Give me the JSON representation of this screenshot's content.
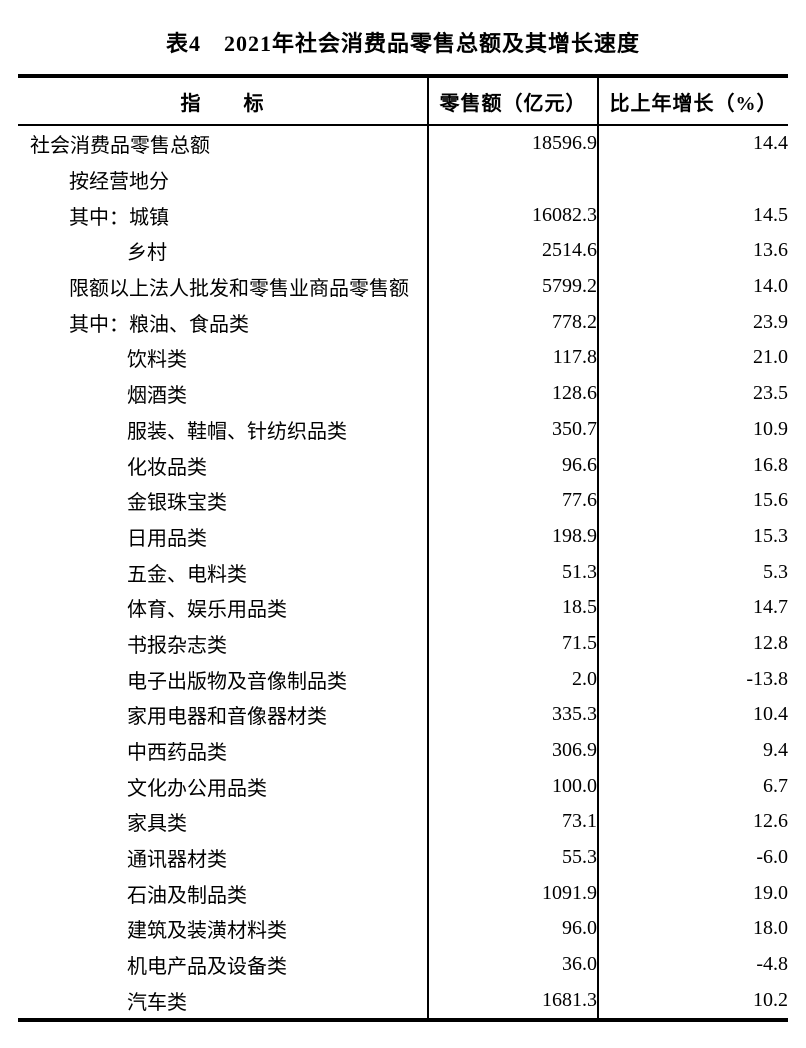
{
  "title": "表4　2021年社会消费品零售总额及其增长速度",
  "table": {
    "columns": [
      "指　　标",
      "零售额（亿元）",
      "比上年增长（%）"
    ],
    "rows": [
      {
        "indicator": "社会消费品零售总额",
        "indent": 0,
        "retail": "18596.9",
        "growth": "14.4"
      },
      {
        "indicator": "按经营地分",
        "indent": 1,
        "retail": "",
        "growth": ""
      },
      {
        "indicator": "其中：城镇",
        "indent": 1,
        "retail": "16082.3",
        "growth": "14.5"
      },
      {
        "indicator": "乡村",
        "indent": 2,
        "retail": "2514.6",
        "growth": "13.6"
      },
      {
        "indicator": "限额以上法人批发和零售业商品零售额",
        "indent": 1,
        "retail": "5799.2",
        "growth": "14.0"
      },
      {
        "indicator": "其中：粮油、食品类",
        "indent": 1,
        "retail": "778.2",
        "growth": "23.9"
      },
      {
        "indicator": "饮料类",
        "indent": 2,
        "retail": "117.8",
        "growth": "21.0"
      },
      {
        "indicator": "烟酒类",
        "indent": 2,
        "retail": "128.6",
        "growth": "23.5"
      },
      {
        "indicator": "服装、鞋帽、针纺织品类",
        "indent": 2,
        "retail": "350.7",
        "growth": "10.9"
      },
      {
        "indicator": "化妆品类",
        "indent": 2,
        "retail": "96.6",
        "growth": "16.8"
      },
      {
        "indicator": "金银珠宝类",
        "indent": 2,
        "retail": "77.6",
        "growth": "15.6"
      },
      {
        "indicator": "日用品类",
        "indent": 2,
        "retail": "198.9",
        "growth": "15.3"
      },
      {
        "indicator": "五金、电料类",
        "indent": 2,
        "retail": "51.3",
        "growth": "5.3"
      },
      {
        "indicator": "体育、娱乐用品类",
        "indent": 2,
        "retail": "18.5",
        "growth": "14.7"
      },
      {
        "indicator": "书报杂志类",
        "indent": 2,
        "retail": "71.5",
        "growth": "12.8"
      },
      {
        "indicator": "电子出版物及音像制品类",
        "indent": 2,
        "retail": "2.0",
        "growth": "-13.8"
      },
      {
        "indicator": "家用电器和音像器材类",
        "indent": 2,
        "retail": "335.3",
        "growth": "10.4"
      },
      {
        "indicator": "中西药品类",
        "indent": 2,
        "retail": "306.9",
        "growth": "9.4"
      },
      {
        "indicator": "文化办公用品类",
        "indent": 2,
        "retail": "100.0",
        "growth": "6.7"
      },
      {
        "indicator": "家具类",
        "indent": 2,
        "retail": "73.1",
        "growth": "12.6"
      },
      {
        "indicator": "通讯器材类",
        "indent": 2,
        "retail": "55.3",
        "growth": "-6.0"
      },
      {
        "indicator": "石油及制品类",
        "indent": 2,
        "retail": "1091.9",
        "growth": "19.0"
      },
      {
        "indicator": "建筑及装潢材料类",
        "indent": 2,
        "retail": "96.0",
        "growth": "18.0"
      },
      {
        "indicator": "机电产品及设备类",
        "indent": 2,
        "retail": "36.0",
        "growth": "-4.8"
      },
      {
        "indicator": "汽车类",
        "indent": 2,
        "retail": "1681.3",
        "growth": "10.2"
      }
    ]
  }
}
